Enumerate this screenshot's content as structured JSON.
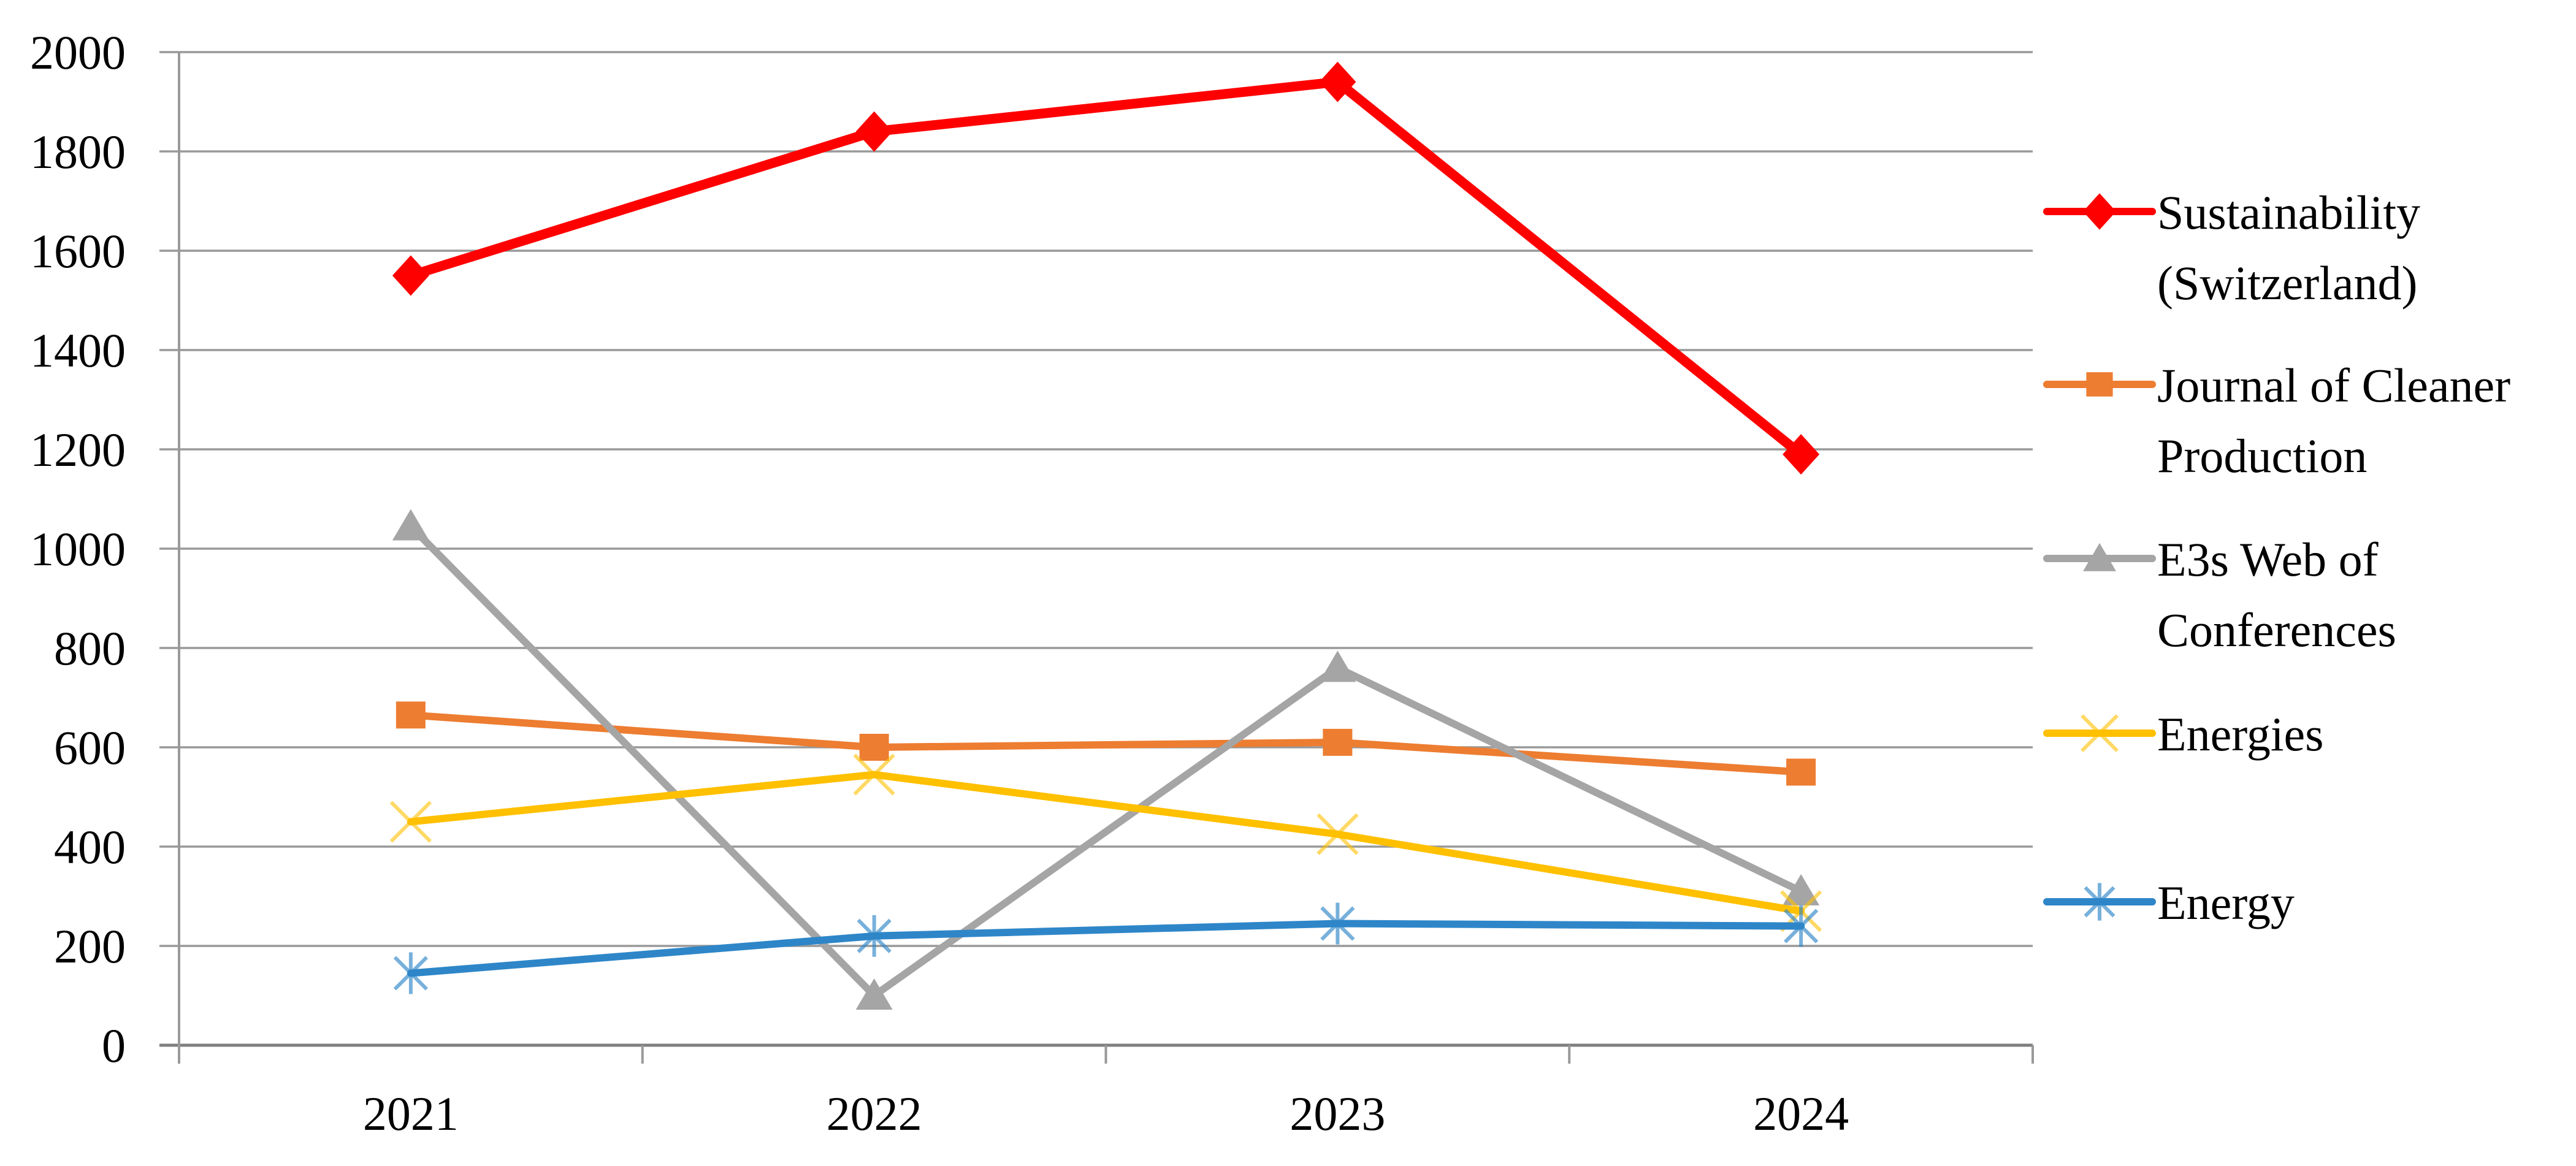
{
  "chart_data": {
    "type": "line",
    "title": "",
    "xlabel": "",
    "ylabel": "",
    "categories": [
      "2021",
      "2022",
      "2023",
      "2024"
    ],
    "series": [
      {
        "name": "Sustainability (Switzerland)",
        "label_lines": [
          "Sustainability",
          "(Switzerland)"
        ],
        "color": "#FF0000",
        "marker": "diamond",
        "values": [
          1550,
          1840,
          1940,
          1190
        ]
      },
      {
        "name": "Journal of Cleaner Production",
        "label_lines": [
          "Journal of Cleaner",
          "Production"
        ],
        "color": "#ED7D31",
        "marker": "square",
        "values": [
          665,
          600,
          610,
          550
        ]
      },
      {
        "name": "E3s Web of Conferences",
        "label_lines": [
          "E3s Web of",
          "Conferences"
        ],
        "color": "#A5A5A5",
        "marker": "triangle",
        "values": [
          1045,
          100,
          760,
          310
        ]
      },
      {
        "name": "Energies",
        "label_lines": [
          "Energies"
        ],
        "color": "#FFC000",
        "marker": "x",
        "values": [
          450,
          545,
          425,
          270
        ]
      },
      {
        "name": "Energy",
        "label_lines": [
          "Energy"
        ],
        "color": "#2E86C8",
        "marker": "asterisk",
        "values": [
          145,
          220,
          245,
          240
        ]
      }
    ],
    "ylim": [
      0,
      2000
    ],
    "ytick_step": 200,
    "yticks": [
      "0",
      "200",
      "400",
      "600",
      "800",
      "1000",
      "1200",
      "1400",
      "1600",
      "1800",
      "2000"
    ],
    "grid": "horizontal-only",
    "legend_position": "right",
    "grid_color": "#999999",
    "axis_color": "#7F7F7F",
    "text_color": "#000000",
    "background_color": "#FFFFFF"
  }
}
